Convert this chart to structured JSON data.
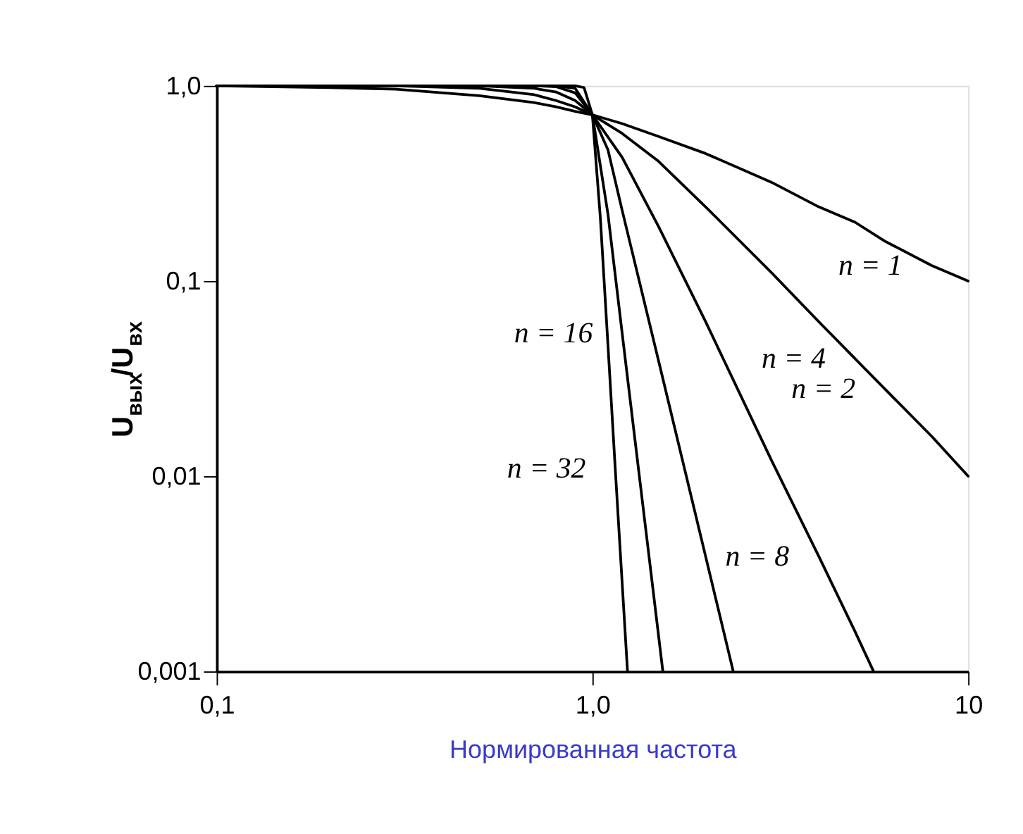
{
  "chart_data": {
    "type": "line",
    "xlabel": "Нормированная частота",
    "ylabel": "U$_{вых}$/U$_{вх}$",
    "log": "xy",
    "grid": false,
    "marker": "none",
    "line_style": "solid",
    "xlim": [
      0.1,
      10
    ],
    "ylim": [
      0.001,
      1
    ],
    "xticks": [
      {
        "value": 0.1,
        "label": "0,1"
      },
      {
        "value": 1,
        "label": "1,0"
      },
      {
        "value": 10,
        "label": "10"
      }
    ],
    "yticks": [
      {
        "value": 0.001,
        "label": "0,001"
      },
      {
        "value": 0.01,
        "label": "0,01"
      },
      {
        "value": 0.1,
        "label": "0,1"
      },
      {
        "value": 1,
        "label": "1,0"
      }
    ],
    "series": [
      {
        "color": "#000000",
        "x": [
          0.1,
          0.2,
          0.3,
          0.5,
          0.7,
          0.8,
          0.9,
          1.0,
          1.2,
          1.5,
          2,
          3,
          4,
          5,
          6,
          8,
          10
        ],
        "values": [
          1.0,
          0.98,
          0.96,
          0.89,
          0.82,
          0.78,
          0.74,
          0.71,
          0.64,
          0.55,
          0.45,
          0.32,
          0.24,
          0.2,
          0.16,
          0.12,
          0.1
        ]
      },
      {
        "color": "#000000",
        "x": [
          0.1,
          0.2,
          0.3,
          0.5,
          0.7,
          0.8,
          0.9,
          1.0,
          1.2,
          1.5,
          2,
          3,
          4,
          5,
          6,
          8,
          10
        ],
        "values": [
          1.0,
          1.0,
          1.0,
          0.97,
          0.9,
          0.84,
          0.78,
          0.71,
          0.57,
          0.41,
          0.24,
          0.11,
          0.062,
          0.04,
          0.028,
          0.016,
          0.01
        ]
      },
      {
        "color": "#000000",
        "x": [
          0.1,
          0.5,
          0.7,
          0.8,
          0.9,
          1.0,
          1.2,
          1.5,
          2,
          3,
          4,
          5,
          5.6
        ],
        "values": [
          1.0,
          1.0,
          0.97,
          0.93,
          0.84,
          0.71,
          0.43,
          0.19,
          0.062,
          0.012,
          0.0039,
          0.0016,
          0.001
        ]
      },
      {
        "color": "#000000",
        "x": [
          0.1,
          0.7,
          0.8,
          0.9,
          1.0,
          1.1,
          1.2,
          1.5,
          2,
          2.37
        ],
        "values": [
          1.0,
          1.0,
          0.99,
          0.92,
          0.71,
          0.47,
          0.23,
          0.039,
          0.0039,
          0.001
        ]
      },
      {
        "color": "#000000",
        "x": [
          0.1,
          0.8,
          0.9,
          1.0,
          1.1,
          1.2,
          1.3,
          1.54
        ],
        "values": [
          1.0,
          1.0,
          0.97,
          0.71,
          0.22,
          0.054,
          0.015,
          0.001
        ]
      },
      {
        "color": "#000000",
        "x": [
          0.1,
          0.9,
          0.95,
          1.0,
          1.05,
          1.1,
          1.15,
          1.24
        ],
        "values": [
          1.0,
          1.0,
          0.98,
          0.71,
          0.21,
          0.047,
          0.011,
          0.001
        ]
      }
    ],
    "annotations": [
      {
        "text": "n = 1",
        "x": 8,
        "y": 0.12
      },
      {
        "text": "n = 2",
        "x": 6,
        "y": 0.028
      },
      {
        "text": "n = 4",
        "x": 5,
        "y": 0.04
      },
      {
        "text": "n = 16",
        "x": 1.2,
        "y": 0.054
      },
      {
        "text": "n = 32",
        "x": 1.15,
        "y": 0.011
      },
      {
        "text": "n = 8",
        "x": 4,
        "y": 0.0039
      }
    ]
  }
}
